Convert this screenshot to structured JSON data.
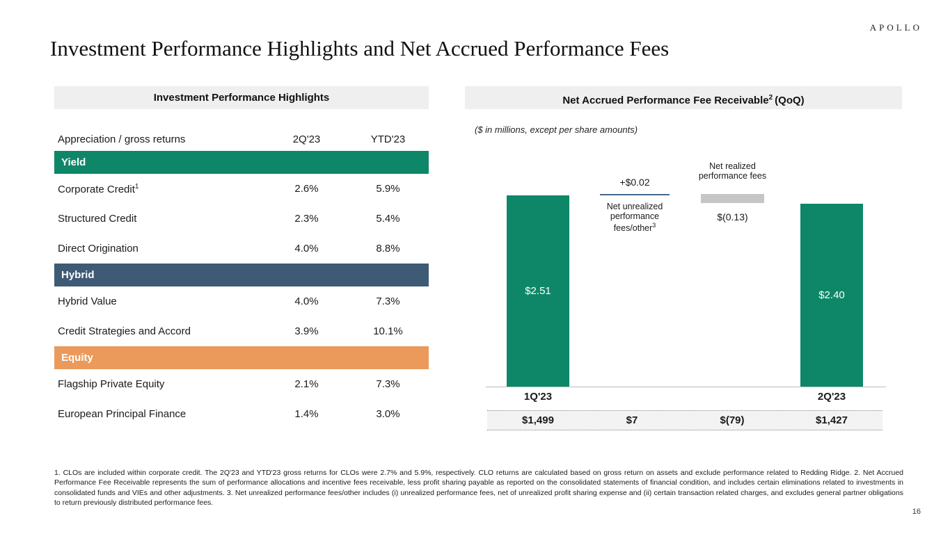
{
  "logo": "APOLLO",
  "title": "Investment Performance Highlights and Net Accrued Performance Fees",
  "colors": {
    "yield_green": "#0E8768",
    "hybrid_blue": "#3E5A75",
    "equity_orange": "#EB9A5B",
    "gray_bar": "#C6C6C6",
    "bridge_line_blue": "#44688C",
    "header_band_gray": "#EFEFEF",
    "totals_band_gray": "#F3F3F3"
  },
  "left_table": {
    "header": "Investment Performance Highlights",
    "col_headers": {
      "label": "Appreciation / gross returns",
      "c1": "2Q'23",
      "c2": "YTD'23"
    },
    "sections": [
      {
        "name": "Yield",
        "rows": [
          {
            "label": "Corporate Credit",
            "sup": "1",
            "q": "2.6%",
            "ytd": "5.9%"
          },
          {
            "label": "Structured Credit",
            "q": "2.3%",
            "ytd": "5.4%"
          },
          {
            "label": "Direct Origination",
            "q": "4.0%",
            "ytd": "8.8%"
          }
        ]
      },
      {
        "name": "Hybrid",
        "rows": [
          {
            "label": "Hybrid Value",
            "q": "4.0%",
            "ytd": "7.3%"
          },
          {
            "label": "Credit Strategies and Accord",
            "q": "3.9%",
            "ytd": "10.1%"
          }
        ]
      },
      {
        "name": "Equity",
        "rows": [
          {
            "label": "Flagship Private Equity",
            "q": "2.1%",
            "ytd": "7.3%"
          },
          {
            "label": "European Principal Finance",
            "q": "1.4%",
            "ytd": "3.0%"
          }
        ]
      }
    ]
  },
  "right_chart": {
    "header": "Net Accrued Performance Fee Receivable",
    "header_sup": "2",
    "header_suffix": "(QoQ)",
    "note": "($ in millions, except per share amounts)",
    "bar1_label": "$2.51",
    "bar2_label": "$2.40",
    "bridge1_value": "+$0.02",
    "bridge1_label": "Net unrealized performance fees/other",
    "bridge1_sup": "3",
    "bridge2_label": "Net realized performance fees",
    "bridge2_value": "$(0.13)",
    "x_label_1": "1Q'23",
    "x_label_2": "2Q'23",
    "totals": [
      "$1,499",
      "$7",
      "$(79)",
      "$1,427"
    ]
  },
  "chart_data": {
    "type": "bar",
    "subtype": "waterfall",
    "title": "Net Accrued Performance Fee Receivable (QoQ)",
    "categories": [
      "1Q'23",
      "Net unrealized performance fees/other",
      "Net realized performance fees",
      "2Q'23"
    ],
    "series": [
      {
        "name": "Per share ($)",
        "values": [
          2.51,
          0.02,
          -0.13,
          2.4
        ]
      },
      {
        "name": "Millions ($)",
        "values": [
          1499,
          7,
          -79,
          1427
        ]
      }
    ],
    "ylim": [
      0,
      2.8
    ],
    "grid": false,
    "legend": false,
    "bar_colors": [
      "#0E8768",
      "#44688C",
      "#C6C6C6",
      "#0E8768"
    ]
  },
  "footnotes": "1. CLOs are included within corporate credit. The 2Q'23 and YTD'23 gross returns for CLOs were 2.7% and 5.9%, respectively. CLO returns are calculated based on gross return on assets and exclude performance related to Redding Ridge. 2. Net Accrued Performance Fee Receivable represents the sum of performance allocations and incentive fees receivable, less profit sharing payable as reported on the consolidated statements of financial condition, and includes certain eliminations related to investments in consolidated funds and VIEs and other adjustments. 3. Net unrealized performance fees/other includes (i) unrealized performance fees, net of unrealized profit sharing expense and (ii) certain transaction related charges, and excludes general partner obligations to return previously distributed performance fees.",
  "page_number": "16"
}
